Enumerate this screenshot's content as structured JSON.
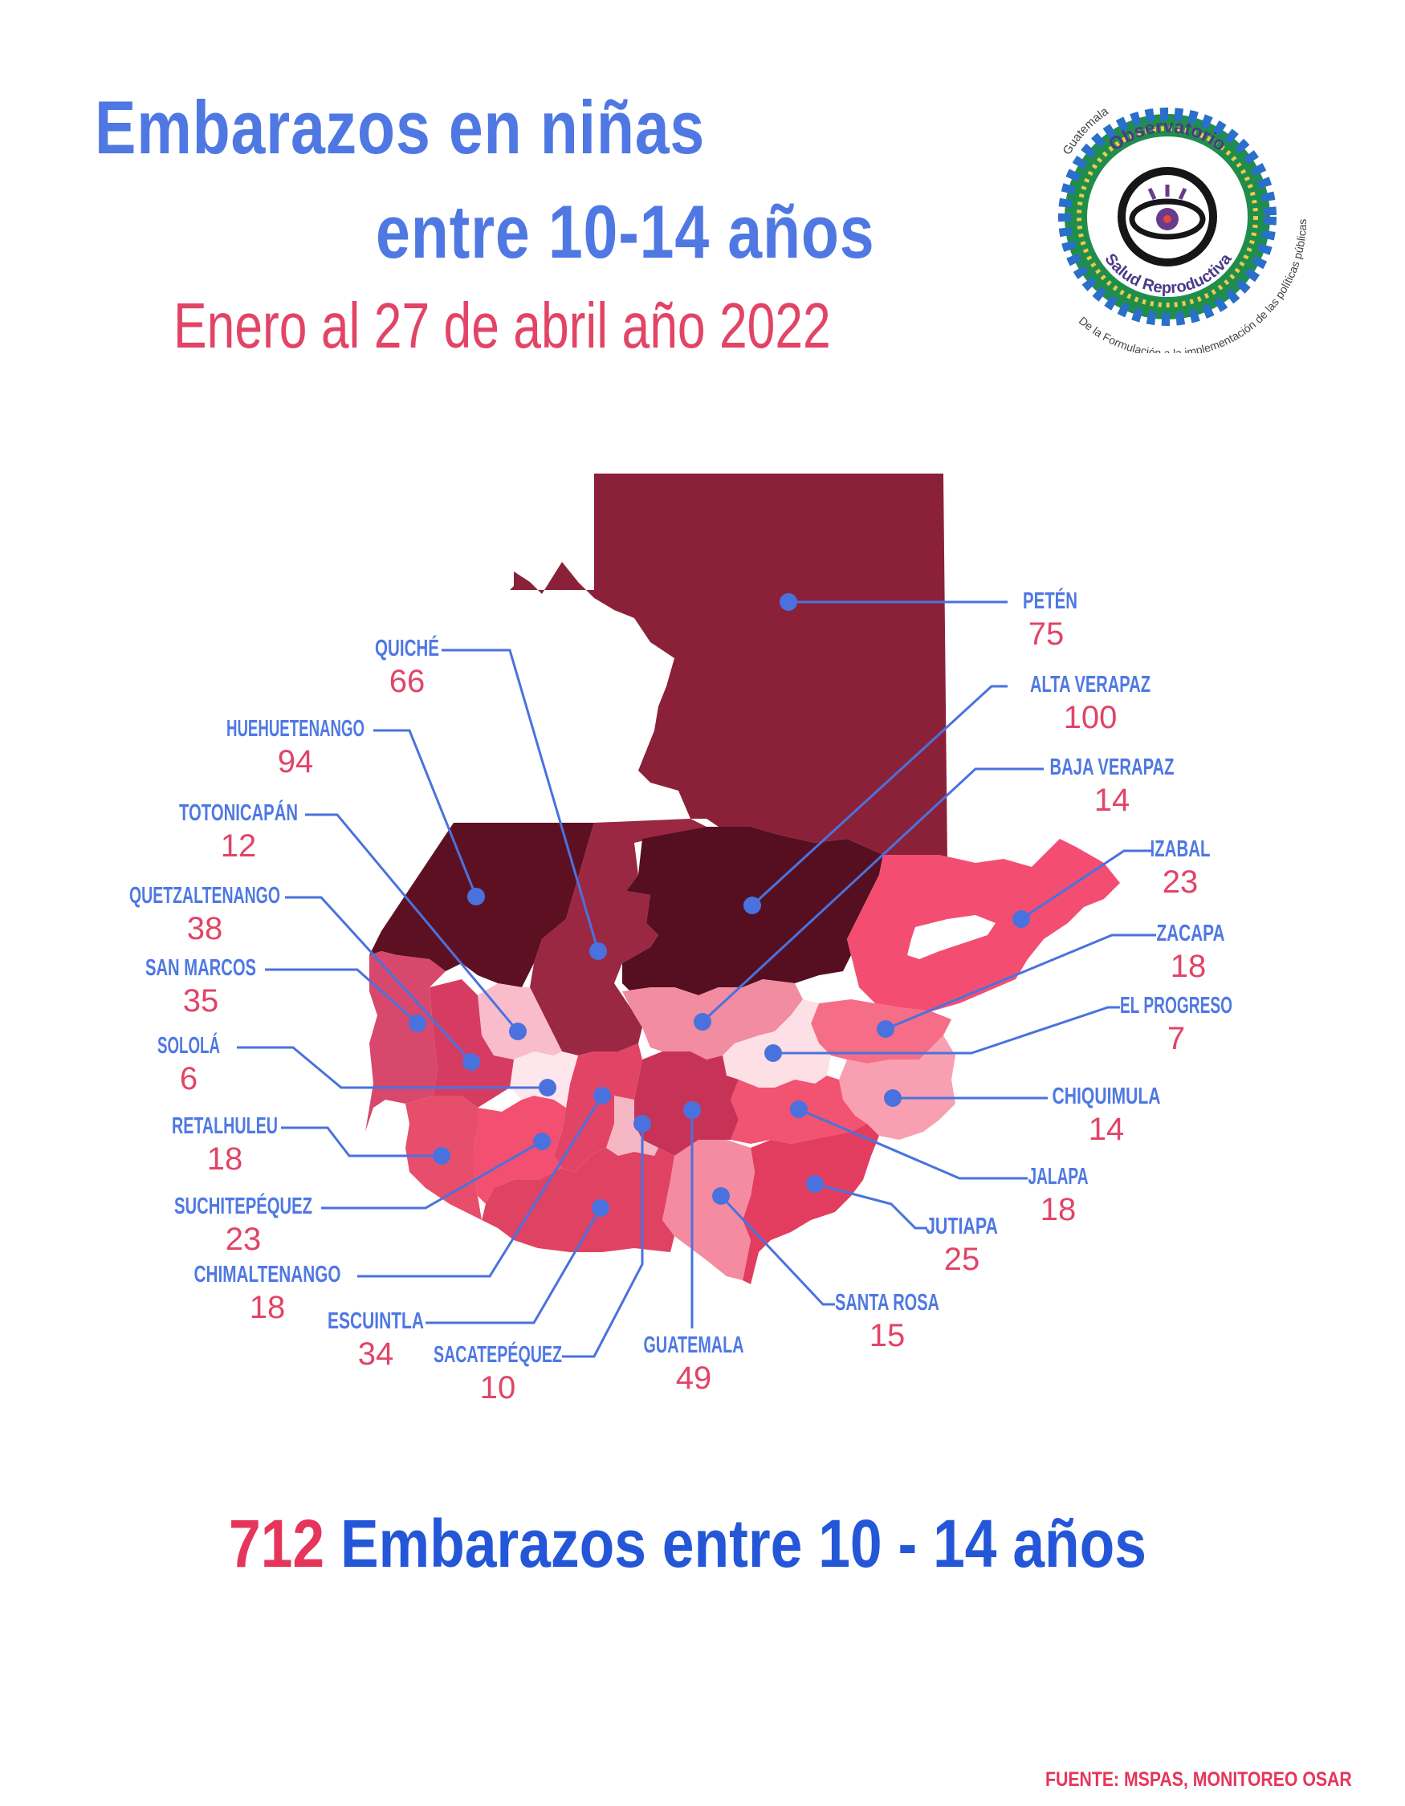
{
  "title_line1": "Embarazos en niñas",
  "title_line2": "entre 10-14 años",
  "subtitle": "Enero al 27 de abril año 2022",
  "logo": {
    "top_text": "Guatemala",
    "ring_text": "Observatorio",
    "ring_text2": "Salud Reproductiva",
    "bottom_text": "De la Formulación a la implementación de las políticas públicas",
    "icon": "eye-icon"
  },
  "departments": [
    {
      "id": "peten",
      "name": "PETÉN",
      "value": "75"
    },
    {
      "id": "altaverapaz",
      "name": "ALTA VERAPAZ",
      "value": "100"
    },
    {
      "id": "bajaverapaz",
      "name": "BAJA VERAPAZ",
      "value": "14"
    },
    {
      "id": "izabal",
      "name": "IZABAL",
      "value": "23"
    },
    {
      "id": "zacapa",
      "name": "ZACAPA",
      "value": "18"
    },
    {
      "id": "elprogreso",
      "name": "EL PROGRESO",
      "value": "7"
    },
    {
      "id": "chiquimula",
      "name": "CHIQUIMULA",
      "value": "14"
    },
    {
      "id": "jalapa",
      "name": "JALAPA",
      "value": "18"
    },
    {
      "id": "jutiapa",
      "name": "JUTIAPA",
      "value": "25"
    },
    {
      "id": "santarosa",
      "name": "SANTA ROSA",
      "value": "15"
    },
    {
      "id": "guatemala",
      "name": "GUATEMALA",
      "value": "49"
    },
    {
      "id": "sacatepequez",
      "name": "SACATEPÉQUEZ",
      "value": "10"
    },
    {
      "id": "escuintla",
      "name": "ESCUINTLA",
      "value": "34"
    },
    {
      "id": "chimaltenango",
      "name": "CHIMALTENANGO",
      "value": "18"
    },
    {
      "id": "suchitepequez",
      "name": "SUCHITEPÉQUEZ",
      "value": "23"
    },
    {
      "id": "retalhuleu",
      "name": "RETALHULEU",
      "value": "18"
    },
    {
      "id": "solola",
      "name": "SOLOLÁ",
      "value": "6"
    },
    {
      "id": "sanmarcos",
      "name": "SAN MARCOS",
      "value": "35"
    },
    {
      "id": "quetzaltenango",
      "name": "QUETZALTENANGO",
      "value": "38"
    },
    {
      "id": "totonicapan",
      "name": "TOTONICAPÁN",
      "value": "12"
    },
    {
      "id": "huehuetenango",
      "name": "HUEHUETENANGO",
      "value": "94"
    },
    {
      "id": "quiche",
      "name": "QUICHÉ",
      "value": "66"
    }
  ],
  "total_number": "712",
  "total_text": "Embarazos entre 10 - 14 años",
  "source": "FUENTE: MSPAS, MONITOREO OSAR",
  "colors": {
    "title": "#4f78e3",
    "accent_pink": "#e24466",
    "label_blue": "#4f78e3",
    "leader_line": "#4a72de"
  }
}
